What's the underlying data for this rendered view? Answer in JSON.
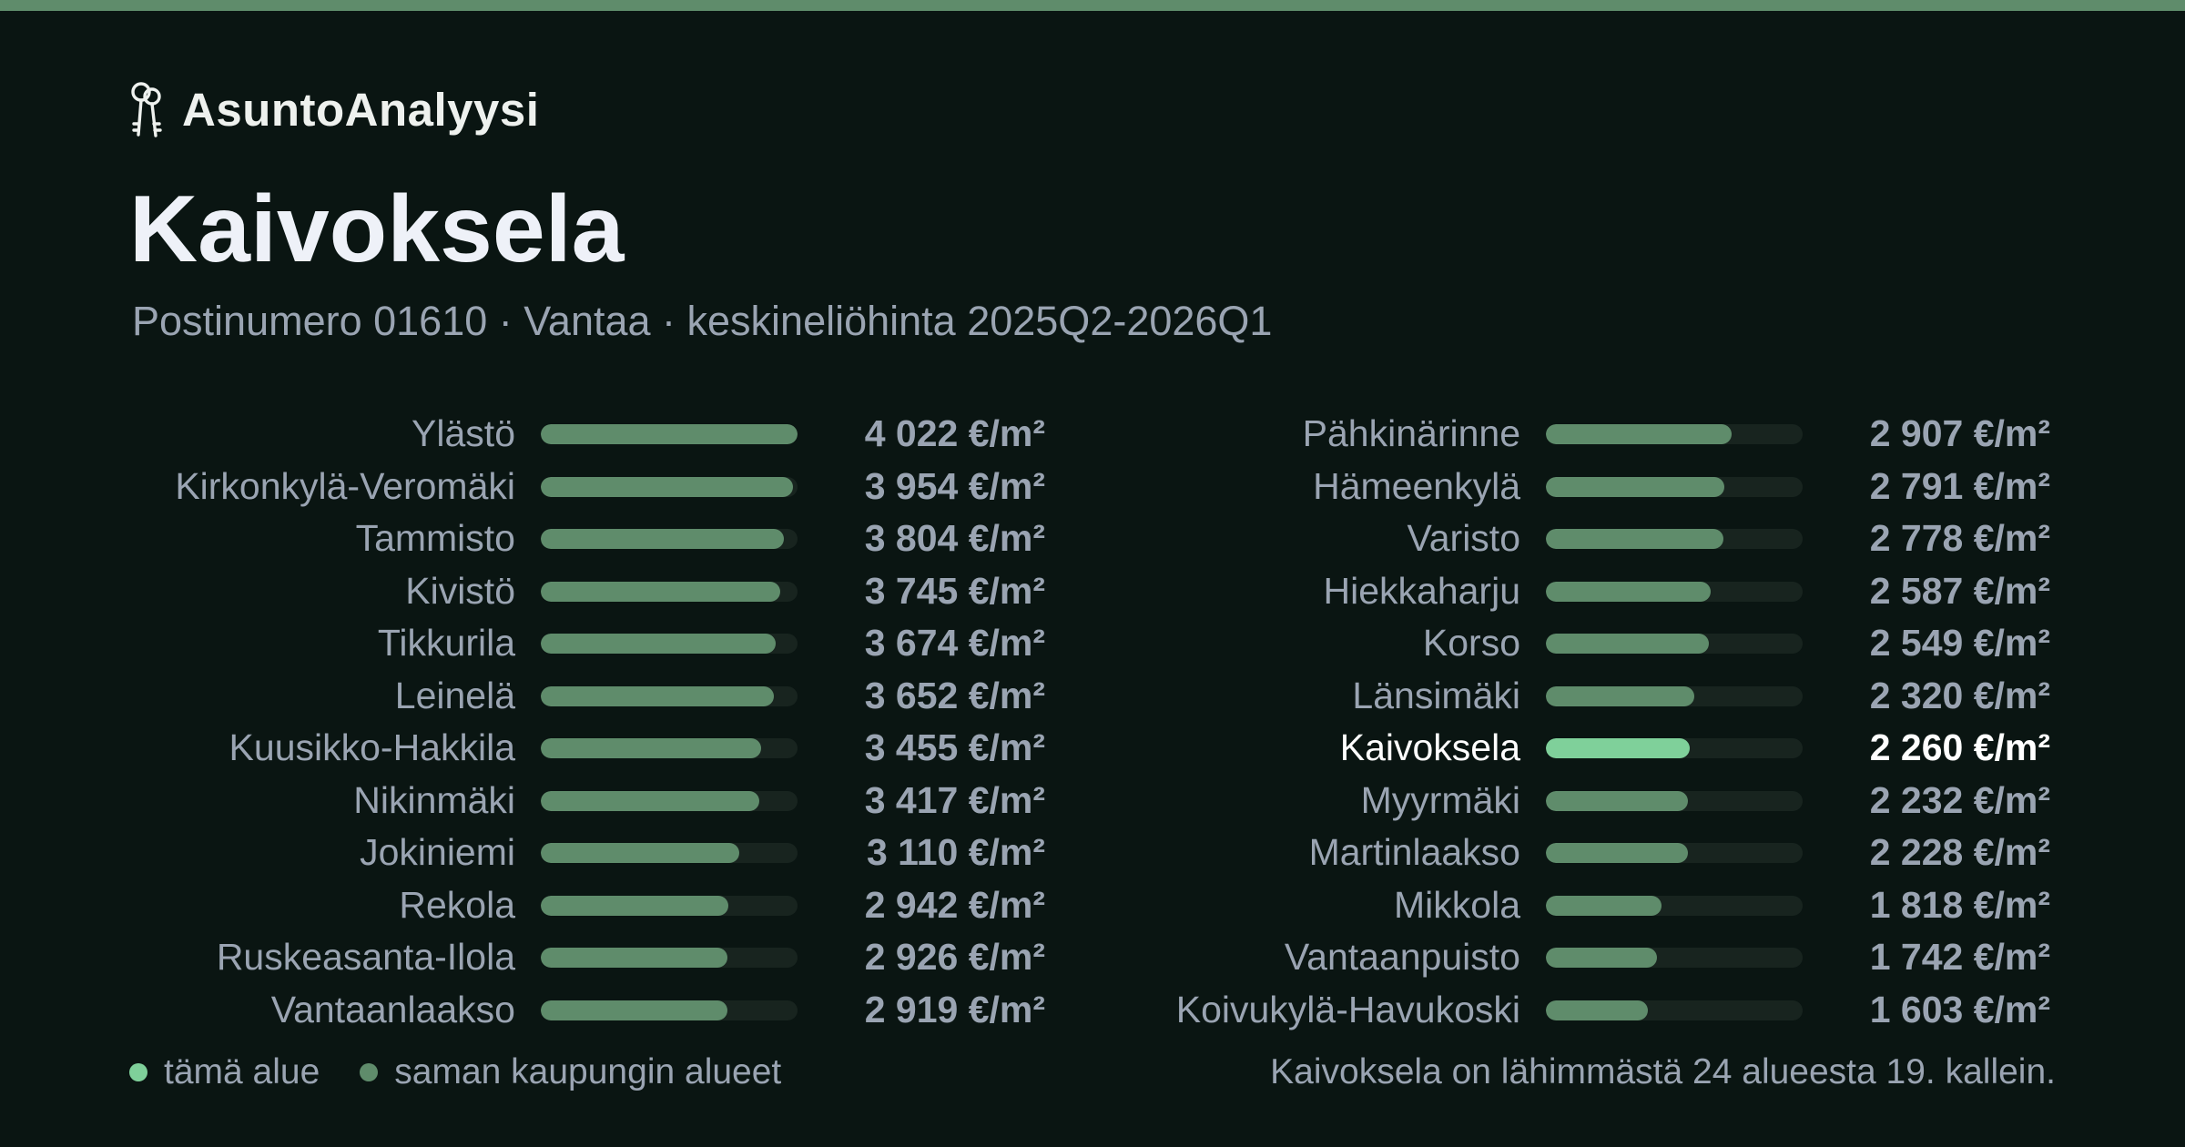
{
  "brand": {
    "name": "AsuntoAnalyysi",
    "icon": "keys-icon"
  },
  "header": {
    "title": "Kaivoksela",
    "subtitle": "Postinumero 01610 · Vantaa · keskineliöhinta 2025Q2-2026Q1"
  },
  "colors": {
    "bar": "#5f8c6b",
    "highlight": "#7fd09a",
    "track": "#18241f",
    "background": "#0a1512"
  },
  "chart_data": {
    "type": "bar",
    "orientation": "horizontal",
    "unit": "€/m²",
    "highlight": "Kaivoksela",
    "xlim": [
      0,
      4022
    ],
    "categories": [
      "Ylästö",
      "Kirkonkylä-Veromäki",
      "Tammisto",
      "Kivistö",
      "Tikkurila",
      "Leinelä",
      "Kuusikko-Hakkila",
      "Nikinmäki",
      "Jokiniemi",
      "Rekola",
      "Ruskeasanta-Ilola",
      "Vantaanlaakso",
      "Pähkinärinne",
      "Hämeenkylä",
      "Varisto",
      "Hiekkaharju",
      "Korso",
      "Länsimäki",
      "Kaivoksela",
      "Myyrmäki",
      "Martinlaakso",
      "Mikkola",
      "Vantaanpuisto",
      "Koivukylä-Havukoski"
    ],
    "values": [
      4022,
      3954,
      3804,
      3745,
      3674,
      3652,
      3455,
      3417,
      3110,
      2942,
      2926,
      2919,
      2907,
      2791,
      2778,
      2587,
      2549,
      2320,
      2260,
      2232,
      2228,
      1818,
      1742,
      1603
    ],
    "value_labels": [
      "4 022 €/m²",
      "3 954 €/m²",
      "3 804 €/m²",
      "3 745 €/m²",
      "3 674 €/m²",
      "3 652 €/m²",
      "3 455 €/m²",
      "3 417 €/m²",
      "3 110 €/m²",
      "2 942 €/m²",
      "2 926 €/m²",
      "2 919 €/m²",
      "2 907 €/m²",
      "2 791 €/m²",
      "2 778 €/m²",
      "2 587 €/m²",
      "2 549 €/m²",
      "2 320 €/m²",
      "2 260 €/m²",
      "2 232 €/m²",
      "2 228 €/m²",
      "1 818 €/m²",
      "1 742 €/m²",
      "1 603 €/m²"
    ]
  },
  "legend": {
    "this_area": "tämä alue",
    "same_city": "saman kaupungin alueet"
  },
  "footnote": "Kaivoksela on lähimmästä 24 alueesta 19. kallein."
}
